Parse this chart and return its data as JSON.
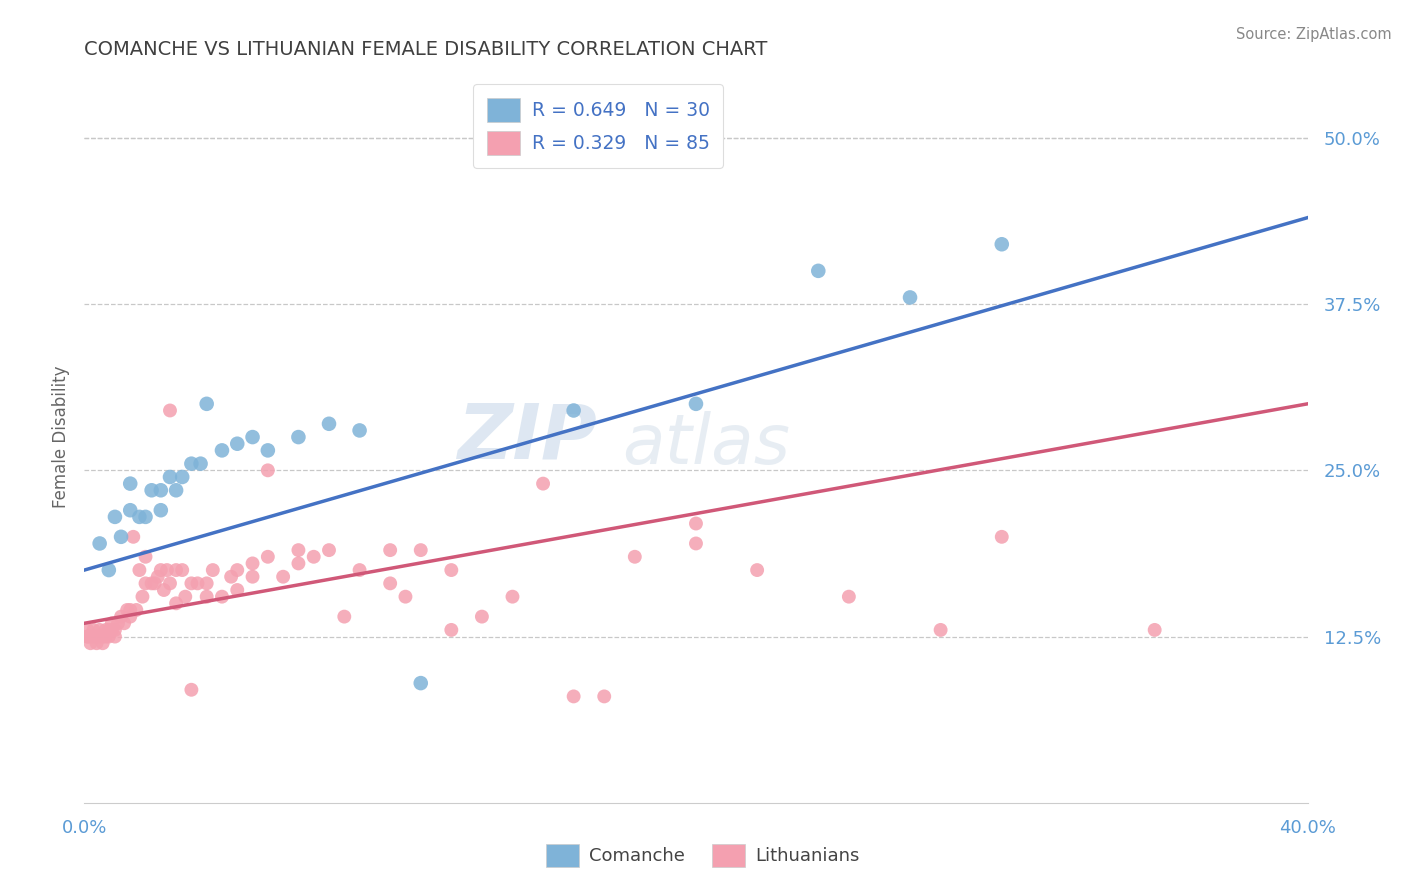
{
  "title": "COMANCHE VS LITHUANIAN FEMALE DISABILITY CORRELATION CHART",
  "source": "Source: ZipAtlas.com",
  "ylabel": "Female Disability",
  "xlim": [
    0.0,
    0.4
  ],
  "ylim": [
    0.0,
    0.55
  ],
  "xticks": [
    0.0,
    0.4
  ],
  "xticklabels": [
    "0.0%",
    "40.0%"
  ],
  "yticks": [
    0.125,
    0.25,
    0.375,
    0.5
  ],
  "yticklabels": [
    "12.5%",
    "25.0%",
    "37.5%",
    "50.0%"
  ],
  "blue_color": "#7fb3d8",
  "pink_color": "#f4a0b0",
  "blue_line_color": "#4472c4",
  "pink_line_color": "#d05878",
  "R_blue": 0.649,
  "N_blue": 30,
  "R_pink": 0.329,
  "N_pink": 85,
  "legend_label_blue": "Comanche",
  "legend_label_pink": "Lithuanians",
  "watermark_zip": "ZIP",
  "watermark_atlas": "atlas",
  "title_color": "#404040",
  "tick_color": "#5b9bd5",
  "grid_color": "#c8c8c8",
  "blue_line_y0": 0.175,
  "blue_line_y1": 0.44,
  "pink_line_y0": 0.135,
  "pink_line_y1": 0.3,
  "blue_scatter": [
    [
      0.005,
      0.195
    ],
    [
      0.008,
      0.175
    ],
    [
      0.01,
      0.215
    ],
    [
      0.012,
      0.2
    ],
    [
      0.015,
      0.22
    ],
    [
      0.015,
      0.24
    ],
    [
      0.018,
      0.215
    ],
    [
      0.02,
      0.215
    ],
    [
      0.022,
      0.235
    ],
    [
      0.025,
      0.22
    ],
    [
      0.025,
      0.235
    ],
    [
      0.028,
      0.245
    ],
    [
      0.03,
      0.235
    ],
    [
      0.032,
      0.245
    ],
    [
      0.035,
      0.255
    ],
    [
      0.038,
      0.255
    ],
    [
      0.04,
      0.3
    ],
    [
      0.045,
      0.265
    ],
    [
      0.05,
      0.27
    ],
    [
      0.055,
      0.275
    ],
    [
      0.06,
      0.265
    ],
    [
      0.07,
      0.275
    ],
    [
      0.08,
      0.285
    ],
    [
      0.09,
      0.28
    ],
    [
      0.11,
      0.09
    ],
    [
      0.16,
      0.295
    ],
    [
      0.2,
      0.3
    ],
    [
      0.24,
      0.4
    ],
    [
      0.27,
      0.38
    ],
    [
      0.3,
      0.42
    ]
  ],
  "pink_scatter": [
    [
      0.001,
      0.125
    ],
    [
      0.001,
      0.13
    ],
    [
      0.001,
      0.125
    ],
    [
      0.002,
      0.12
    ],
    [
      0.002,
      0.125
    ],
    [
      0.003,
      0.125
    ],
    [
      0.003,
      0.13
    ],
    [
      0.004,
      0.125
    ],
    [
      0.004,
      0.12
    ],
    [
      0.005,
      0.125
    ],
    [
      0.005,
      0.13
    ],
    [
      0.006,
      0.125
    ],
    [
      0.006,
      0.12
    ],
    [
      0.007,
      0.125
    ],
    [
      0.007,
      0.13
    ],
    [
      0.008,
      0.13
    ],
    [
      0.008,
      0.125
    ],
    [
      0.009,
      0.13
    ],
    [
      0.009,
      0.135
    ],
    [
      0.01,
      0.125
    ],
    [
      0.01,
      0.13
    ],
    [
      0.011,
      0.135
    ],
    [
      0.012,
      0.14
    ],
    [
      0.013,
      0.135
    ],
    [
      0.014,
      0.145
    ],
    [
      0.015,
      0.14
    ],
    [
      0.015,
      0.145
    ],
    [
      0.016,
      0.2
    ],
    [
      0.017,
      0.145
    ],
    [
      0.018,
      0.175
    ],
    [
      0.019,
      0.155
    ],
    [
      0.02,
      0.165
    ],
    [
      0.02,
      0.185
    ],
    [
      0.022,
      0.165
    ],
    [
      0.023,
      0.165
    ],
    [
      0.024,
      0.17
    ],
    [
      0.025,
      0.175
    ],
    [
      0.026,
      0.16
    ],
    [
      0.027,
      0.175
    ],
    [
      0.028,
      0.165
    ],
    [
      0.028,
      0.295
    ],
    [
      0.03,
      0.15
    ],
    [
      0.03,
      0.175
    ],
    [
      0.032,
      0.175
    ],
    [
      0.033,
      0.155
    ],
    [
      0.035,
      0.165
    ],
    [
      0.035,
      0.085
    ],
    [
      0.037,
      0.165
    ],
    [
      0.04,
      0.155
    ],
    [
      0.04,
      0.165
    ],
    [
      0.042,
      0.175
    ],
    [
      0.045,
      0.155
    ],
    [
      0.048,
      0.17
    ],
    [
      0.05,
      0.16
    ],
    [
      0.05,
      0.175
    ],
    [
      0.055,
      0.17
    ],
    [
      0.055,
      0.18
    ],
    [
      0.06,
      0.185
    ],
    [
      0.06,
      0.25
    ],
    [
      0.065,
      0.17
    ],
    [
      0.07,
      0.18
    ],
    [
      0.07,
      0.19
    ],
    [
      0.075,
      0.185
    ],
    [
      0.08,
      0.19
    ],
    [
      0.085,
      0.14
    ],
    [
      0.09,
      0.175
    ],
    [
      0.1,
      0.165
    ],
    [
      0.1,
      0.19
    ],
    [
      0.105,
      0.155
    ],
    [
      0.11,
      0.19
    ],
    [
      0.12,
      0.13
    ],
    [
      0.12,
      0.175
    ],
    [
      0.13,
      0.14
    ],
    [
      0.14,
      0.155
    ],
    [
      0.15,
      0.24
    ],
    [
      0.16,
      0.08
    ],
    [
      0.18,
      0.185
    ],
    [
      0.2,
      0.195
    ],
    [
      0.2,
      0.21
    ],
    [
      0.22,
      0.175
    ],
    [
      0.25,
      0.155
    ],
    [
      0.28,
      0.13
    ],
    [
      0.3,
      0.2
    ],
    [
      0.35,
      0.13
    ],
    [
      0.17,
      0.08
    ]
  ]
}
